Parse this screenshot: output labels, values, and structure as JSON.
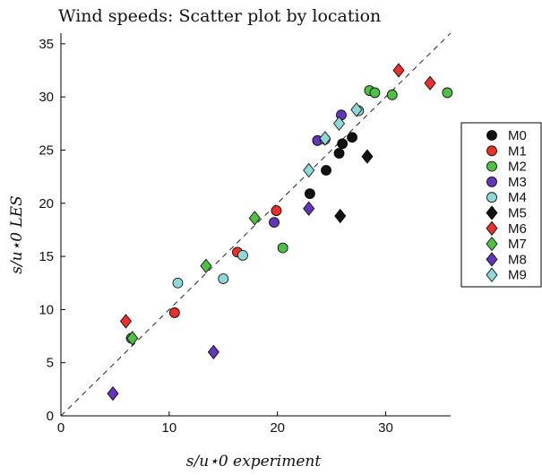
{
  "chart_data": {
    "type": "scatter",
    "title": "Wind speeds: Scatter plot by location",
    "xlabel": "s/u⋆0 experiment",
    "ylabel": "s/u⋆0 LES",
    "xlim": [
      0,
      36
    ],
    "ylim": [
      0,
      36
    ],
    "xticks": [
      0,
      10,
      20,
      30
    ],
    "yticks": [
      0,
      5,
      10,
      15,
      20,
      25,
      30,
      35
    ],
    "grid": false,
    "legend_position": "right",
    "reference_line": "y = x (dashed)",
    "series": [
      {
        "name": "M0",
        "marker": "circle",
        "color": "#111111",
        "points": [
          [
            23.0,
            20.9
          ],
          [
            24.5,
            23.1
          ],
          [
            25.7,
            24.7
          ],
          [
            26.0,
            25.6
          ],
          [
            26.9,
            26.2
          ]
        ]
      },
      {
        "name": "M1",
        "marker": "circle",
        "color": "#e8312a",
        "points": [
          [
            10.5,
            9.7
          ],
          [
            16.3,
            15.4
          ],
          [
            19.9,
            19.3
          ]
        ]
      },
      {
        "name": "M2",
        "marker": "circle",
        "color": "#4fc045",
        "points": [
          [
            6.5,
            7.3
          ],
          [
            20.5,
            15.8
          ],
          [
            28.5,
            30.6
          ],
          [
            29.0,
            30.4
          ],
          [
            30.6,
            30.2
          ],
          [
            35.7,
            30.4
          ]
        ]
      },
      {
        "name": "M3",
        "marker": "circle",
        "color": "#6236b8",
        "points": [
          [
            19.7,
            18.2
          ],
          [
            23.7,
            25.9
          ],
          [
            25.9,
            28.3
          ]
        ]
      },
      {
        "name": "M4",
        "marker": "circle",
        "color": "#8fd8d6",
        "points": [
          [
            10.8,
            12.5
          ],
          [
            15.0,
            12.9
          ],
          [
            16.8,
            15.1
          ],
          [
            24.4,
            26.0
          ],
          [
            27.5,
            28.7
          ]
        ]
      },
      {
        "name": "M5",
        "marker": "diamond",
        "color": "#111111",
        "points": [
          [
            25.8,
            18.8
          ],
          [
            28.3,
            24.4
          ]
        ]
      },
      {
        "name": "M6",
        "marker": "diamond",
        "color": "#e8312a",
        "points": [
          [
            6.0,
            8.9
          ],
          [
            31.2,
            32.5
          ],
          [
            34.1,
            31.3
          ]
        ]
      },
      {
        "name": "M7",
        "marker": "diamond",
        "color": "#4fc045",
        "points": [
          [
            6.6,
            7.3
          ],
          [
            13.4,
            14.1
          ],
          [
            17.9,
            18.6
          ]
        ]
      },
      {
        "name": "M8",
        "marker": "diamond",
        "color": "#6236b8",
        "points": [
          [
            4.8,
            2.1
          ],
          [
            14.1,
            6.0
          ],
          [
            22.9,
            19.5
          ]
        ]
      },
      {
        "name": "M9",
        "marker": "diamond",
        "color": "#8fd8d6",
        "points": [
          [
            22.9,
            23.1
          ],
          [
            24.4,
            26.1
          ],
          [
            25.7,
            27.5
          ],
          [
            27.3,
            28.8
          ]
        ]
      }
    ]
  }
}
